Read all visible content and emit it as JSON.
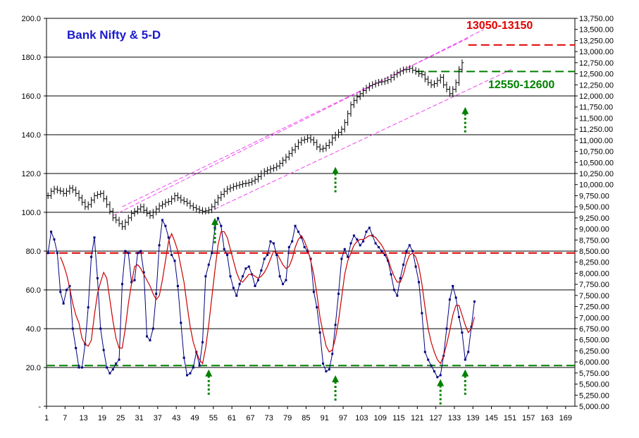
{
  "chart_data": {
    "type": "line",
    "title": "Bank Nifty & 5-D",
    "left_axis": {
      "ticks": [
        "200.0",
        "180.0",
        "160.0",
        "140.0",
        "120.0",
        "100.0",
        "80.0",
        "60.0",
        "40.0",
        "20.0",
        "-"
      ],
      "ylim": [
        0,
        200
      ]
    },
    "right_axis": {
      "ticks": [
        "13,750.00",
        "13,500.00",
        "13,250.00",
        "13,000.00",
        "12,750.00",
        "12,500.00",
        "12,250.00",
        "12,000.00",
        "11,750.00",
        "11,500.00",
        "11,250.00",
        "11,000.00",
        "10,750.00",
        "10,500.00",
        "10,250.00",
        "10,000.00",
        "9,750.00",
        "9,500.00",
        "9,250.00",
        "9,000.00",
        "8,750.00",
        "8,500.00",
        "8,250.00",
        "8,000.00",
        "7,750.00",
        "7,500.00",
        "7,250.00",
        "7,000.00",
        "6,750.00",
        "6,500.00",
        "6,250.00",
        "6,000.00",
        "5,750.00",
        "5,500.00",
        "5,250.00",
        "5,000.00"
      ],
      "ylim": [
        5000,
        13750
      ]
    },
    "x_ticks": [
      "1",
      "7",
      "13",
      "19",
      "25",
      "31",
      "37",
      "43",
      "49",
      "55",
      "61",
      "67",
      "73",
      "79",
      "85",
      "91",
      "97",
      "103",
      "109",
      "115",
      "121",
      "127",
      "133",
      "139",
      "145",
      "151",
      "157",
      "163",
      "169"
    ],
    "xlim": [
      1,
      171
    ],
    "grid": "horizontal",
    "series": [
      {
        "type": "ohlc",
        "axis": "right",
        "color": "#000000",
        "close": [
          9750,
          9850,
          9900,
          9870,
          9850,
          9800,
          9850,
          9920,
          9880,
          9800,
          9700,
          9600,
          9500,
          9550,
          9650,
          9750,
          9780,
          9800,
          9680,
          9550,
          9400,
          9250,
          9200,
          9120,
          9050,
          9150,
          9250,
          9350,
          9400,
          9450,
          9500,
          9420,
          9350,
          9300,
          9380,
          9450,
          9520,
          9560,
          9600,
          9620,
          9680,
          9750,
          9700,
          9650,
          9620,
          9580,
          9520,
          9480,
          9450,
          9420,
          9400,
          9410,
          9430,
          9500,
          9600,
          9700,
          9780,
          9850,
          9900,
          9930,
          9960,
          9980,
          10000,
          10020,
          10030,
          10050,
          10080,
          10120,
          10180,
          10250,
          10300,
          10330,
          10360,
          10380,
          10420,
          10480,
          10550,
          10620,
          10700,
          10780,
          10860,
          10950,
          11000,
          11020,
          11050,
          11010,
          10950,
          10850,
          10800,
          10820,
          10880,
          10950,
          11050,
          11120,
          11180,
          11250,
          11400,
          11600,
          11800,
          11900,
          11980,
          12050,
          12120,
          12180,
          12230,
          12260,
          12290,
          12310,
          12320,
          12340,
          12370,
          12420,
          12480,
          12520,
          12560,
          12590,
          12600,
          12620,
          12580,
          12550,
          12500,
          12480,
          12380,
          12300,
          12250,
          12280,
          12350,
          12420,
          12250,
          12150,
          12050,
          12150,
          12300,
          12600,
          12750
        ],
        "spread": 120
      },
      {
        "type": "line",
        "axis": "left",
        "color": "#00007f",
        "markers": true,
        "values": [
          79,
          90,
          86,
          79,
          59,
          53,
          60,
          62,
          40,
          30,
          20,
          20,
          32,
          51,
          77,
          87,
          66,
          40,
          29,
          20,
          17,
          19,
          22,
          24,
          63,
          80,
          79,
          64,
          65,
          79,
          80,
          69,
          36,
          34,
          40,
          58,
          83,
          96,
          93,
          87,
          78,
          75,
          62,
          43,
          25,
          16,
          17,
          20,
          28,
          21,
          33,
          67,
          73,
          79,
          92,
          97,
          93,
          81,
          78,
          67,
          61,
          57,
          63,
          67,
          71,
          72,
          68,
          62,
          65,
          70,
          76,
          78,
          85,
          84,
          78,
          67,
          63,
          65,
          82,
          85,
          93,
          90,
          87,
          82,
          80,
          76,
          59,
          51,
          38,
          22,
          18,
          19,
          27,
          42,
          58,
          76,
          81,
          77,
          84,
          88,
          86,
          83,
          85,
          90,
          92,
          88,
          84,
          82,
          80,
          78,
          75,
          68,
          60,
          57,
          66,
          73,
          80,
          83,
          80,
          72,
          64,
          48,
          28,
          24,
          21,
          18,
          15,
          16,
          26,
          40,
          55,
          62,
          56,
          46,
          38,
          24,
          28,
          41,
          54
        ]
      },
      {
        "type": "line",
        "axis": "left",
        "color": "#cc0000",
        "markers": false,
        "values": [
          null,
          null,
          null,
          null,
          77,
          73,
          68,
          61,
          53,
          47,
          43,
          35,
          32,
          31,
          34,
          47,
          58,
          64,
          69,
          66,
          55,
          44,
          35,
          30,
          30,
          40,
          53,
          63,
          72,
          73,
          71,
          68,
          65,
          62,
          58,
          55,
          57,
          65,
          75,
          85,
          89,
          85,
          80,
          72,
          64,
          52,
          41,
          33,
          28,
          24,
          22,
          30,
          42,
          56,
          70,
          83,
          90,
          90,
          87,
          81,
          75,
          69,
          65,
          64,
          66,
          68,
          68,
          67,
          66,
          67,
          69,
          72,
          76,
          80,
          79,
          76,
          73,
          71,
          72,
          76,
          82,
          86,
          88,
          85,
          81,
          75,
          68,
          58,
          46,
          38,
          31,
          28,
          29,
          35,
          44,
          56,
          68,
          75,
          79,
          83,
          85,
          86,
          86,
          87,
          88,
          88,
          87,
          85,
          83,
          80,
          76,
          71,
          67,
          64,
          64,
          68,
          74,
          78,
          79,
          77,
          72,
          63,
          51,
          40,
          33,
          28,
          24,
          22,
          26,
          32,
          39,
          47,
          52,
          52,
          47,
          42,
          38,
          40,
          46
        ]
      }
    ],
    "reference_lines": [
      {
        "axis": "left",
        "value": 79,
        "color": "#e00000",
        "style": "dashed"
      },
      {
        "axis": "left",
        "value": 21,
        "color": "#008000",
        "style": "dashed"
      },
      {
        "axis": "right",
        "value": 13150,
        "from_x": 137,
        "color": "#e00000",
        "style": "dashed"
      },
      {
        "axis": "right",
        "value": 12550,
        "from_x": 120,
        "color": "#008000",
        "style": "dashed"
      }
    ],
    "channel_lines": [
      {
        "from": [
          25,
          9500
        ],
        "to": [
          137,
          13300
        ]
      },
      {
        "from": [
          22,
          9300
        ],
        "to": [
          142,
          13500
        ]
      },
      {
        "from": [
          55,
          9450
        ],
        "to": [
          151,
          12600
        ]
      }
    ],
    "annotations": [
      {
        "text": "13050-13150",
        "color": "#e00000"
      },
      {
        "text": "12550-12600",
        "color": "#008000"
      }
    ],
    "arrows": [
      {
        "x": 55,
        "axis": "right",
        "value": 9250
      },
      {
        "x": 94,
        "axis": "right",
        "value": 10400
      },
      {
        "x": 136,
        "axis": "right",
        "value": 11750
      },
      {
        "x": 53,
        "axis": "left",
        "value": 19
      },
      {
        "x": 94,
        "axis": "left",
        "value": 16
      },
      {
        "x": 128,
        "axis": "left",
        "value": 14
      },
      {
        "x": 136,
        "axis": "left",
        "value": 19
      }
    ]
  }
}
